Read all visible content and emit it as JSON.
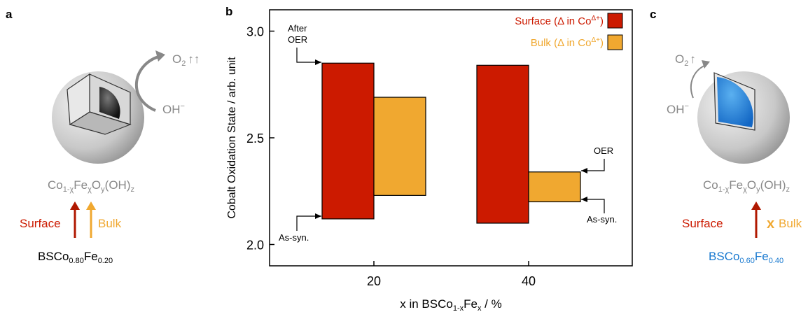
{
  "panels": {
    "a": {
      "letter": "a",
      "o2_label": "O",
      "o2_sub": "2",
      "o2_arrows": "↑↑",
      "oh_label": "OH",
      "oh_sup": "−",
      "formula": {
        "base": "Co",
        "s1": "1-χ",
        "fe": "Fe",
        "s2": "χ",
        "o": "O",
        "s3": "y",
        "oh": "(OH)",
        "s4": "z"
      },
      "surface": "Surface",
      "bulk": "Bulk",
      "compound": {
        "base": "BSCo",
        "s1": "0.80",
        "fe": "Fe",
        "s2": "0.20"
      }
    },
    "c": {
      "letter": "c",
      "o2_label": "O",
      "o2_sub": "2",
      "o2_arrows": "↑",
      "oh_label": "OH",
      "oh_sup": "−",
      "formula": {
        "base": "Co",
        "s1": "1-χ",
        "fe": "Fe",
        "s2": "χ",
        "o": "O",
        "s3": "y",
        "oh": "(OH)",
        "s4": "z"
      },
      "surface": "Surface",
      "cross": "x",
      "bulk": "Bulk",
      "compound": {
        "base": "BSCo",
        "s1": "0.60",
        "fe": "Fe",
        "s2": "0.40"
      }
    }
  },
  "colors": {
    "surface": "#cc1a00",
    "bulk": "#f0a830",
    "blue": "#1a7ad0",
    "gray": "#888888"
  },
  "chart_data": {
    "letter": "b",
    "type": "bar",
    "xlabel": {
      "pre": "x in BSCo",
      "s1": "1-x",
      "mid": "Fe",
      "s2": "x",
      "post": " / %"
    },
    "ylabel": "Cobalt Oxidation State / arb. unit",
    "ylim": [
      1.9,
      3.1
    ],
    "yticks": [
      "2.0",
      "2.5",
      "3.0"
    ],
    "ytick_values": [
      2.0,
      2.5,
      3.0
    ],
    "categories": [
      "20",
      "40"
    ],
    "series": [
      {
        "name": "Surface (Δ in Co",
        "sup": "Δ+",
        "close": ")",
        "color": "#cc1a00",
        "low": [
          2.12,
          2.1
        ],
        "high": [
          2.85,
          2.84
        ]
      },
      {
        "name": "Bulk (Δ in Co",
        "sup": "Δ+",
        "close": ")",
        "color": "#f0a830",
        "low": [
          2.23,
          2.2
        ],
        "high": [
          2.69,
          2.34
        ]
      }
    ],
    "annotations": {
      "after_oer_1": "After",
      "after_oer_2": "OER",
      "as_syn_left": "As-syn.",
      "oer_right": "OER",
      "as_syn_right": "As-syn."
    }
  }
}
